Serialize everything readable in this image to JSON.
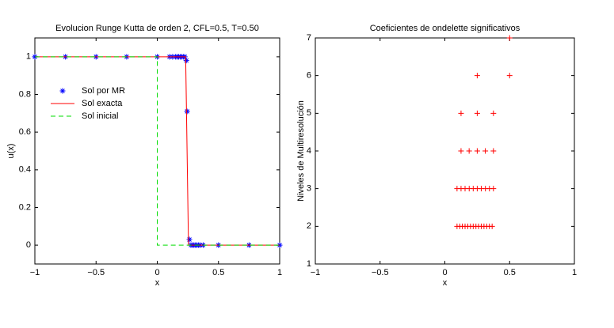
{
  "chart_data": [
    {
      "type": "line",
      "title": "Evolucion Runge Kutta de orden 2, CFL=0.5, T=0.50",
      "x_label": "x",
      "y_label": "u(x)",
      "xlim": [
        -1,
        1
      ],
      "ylim": [
        -0.1,
        1.1
      ],
      "xticks": [
        {
          "value": -1,
          "label": "−1"
        },
        {
          "value": -0.5,
          "label": "−0.5"
        },
        0,
        0.5,
        1
      ],
      "yticks": [
        0,
        0.2,
        0.4,
        0.6,
        0.8,
        1
      ],
      "legend": "west",
      "series": [
        {
          "name": "Sol por MR",
          "color": "#0000ff",
          "style": "markers",
          "marker": "*",
          "x": [
            -1,
            -0.75,
            -0.5,
            -0.25,
            0,
            0.1,
            0.125,
            0.15,
            0.1625,
            0.175,
            0.1875,
            0.2,
            0.2125,
            0.225,
            0.2375,
            0.2438,
            0.2625,
            0.275,
            0.2875,
            0.3,
            0.3125,
            0.325,
            0.3375,
            0.35,
            0.375,
            0.5,
            0.75,
            1
          ],
          "values": [
            1,
            1,
            1,
            1,
            1,
            1,
            1,
            1,
            1,
            1,
            1,
            1,
            1,
            1,
            0.98,
            0.71,
            0.03,
            0,
            0,
            0,
            0,
            0,
            0,
            0,
            0,
            0,
            0,
            0
          ]
        },
        {
          "name": "Sol exacta",
          "color": "#ff0000",
          "style": "solid",
          "x": [
            -1,
            0.232,
            0.255,
            1
          ],
          "values": [
            1,
            1,
            0,
            0
          ]
        },
        {
          "name": "Sol inicial",
          "color": "#00dd00",
          "style": "dashed",
          "x": [
            -1,
            0,
            0,
            1
          ],
          "values": [
            1,
            1,
            0,
            0
          ]
        }
      ]
    },
    {
      "type": "scatter",
      "title": "Coeficientes de ondelette significativos",
      "x_label": "x",
      "y_label": "Niveles de Multiresolución",
      "xlim": [
        -1,
        1
      ],
      "ylim": [
        1,
        7
      ],
      "xticks": [
        {
          "value": -1,
          "label": "−1"
        },
        {
          "value": -0.5,
          "label": "−0.5"
        },
        0,
        0.5,
        1
      ],
      "yticks": [
        1,
        2,
        3,
        4,
        5,
        6,
        7
      ],
      "color": "#ff0000",
      "marker": "+",
      "x": [
        0.094,
        0.115,
        0.135,
        0.156,
        0.177,
        0.198,
        0.219,
        0.24,
        0.26,
        0.281,
        0.302,
        0.323,
        0.344,
        0.365,
        0.094,
        0.125,
        0.156,
        0.188,
        0.219,
        0.25,
        0.281,
        0.313,
        0.344,
        0.375,
        0.125,
        0.1875,
        0.25,
        0.3125,
        0.375,
        0.125,
        0.25,
        0.375,
        0.25,
        0.5,
        0.5
      ],
      "values": [
        2,
        2,
        2,
        2,
        2,
        2,
        2,
        2,
        2,
        2,
        2,
        2,
        2,
        2,
        3,
        3,
        3,
        3,
        3,
        3,
        3,
        3,
        3,
        3,
        4,
        4,
        4,
        4,
        4,
        5,
        5,
        5,
        6,
        6,
        7
      ]
    }
  ]
}
